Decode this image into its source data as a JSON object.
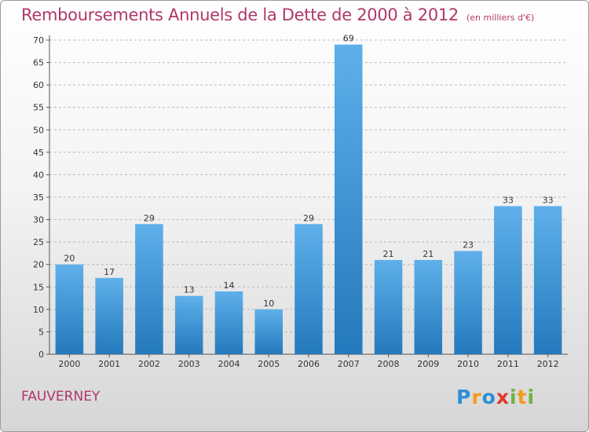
{
  "title": "Remboursements Annuels de la Dette de 2000 à 2012",
  "unit_note": "(en milliers d'€)",
  "commune": "FAUVERNEY",
  "logo": {
    "text": "Proxiti",
    "letters": [
      {
        "ch": "P",
        "color": "#2b8fd6"
      },
      {
        "ch": "r",
        "color": "#f39a1d"
      },
      {
        "ch": "o",
        "color": "#2b8fd6"
      },
      {
        "ch": "x",
        "color": "#e2362b"
      },
      {
        "ch": "i",
        "color": "#6cb33f"
      },
      {
        "ch": "t",
        "color": "#f39a1d"
      },
      {
        "ch": "i",
        "color": "#6cb33f"
      }
    ]
  },
  "chart_data": {
    "type": "bar",
    "categories": [
      "2000",
      "2001",
      "2002",
      "2003",
      "2004",
      "2005",
      "2006",
      "2007",
      "2008",
      "2009",
      "2010",
      "2011",
      "2012"
    ],
    "values": [
      20,
      17,
      29,
      13,
      14,
      10,
      29,
      69,
      21,
      21,
      23,
      33,
      33
    ],
    "ylim": [
      0,
      70
    ],
    "yticks": [
      0,
      5,
      10,
      15,
      20,
      25,
      30,
      35,
      40,
      45,
      50,
      55,
      60,
      65,
      70
    ],
    "grid": "horizontal dashed",
    "bar_color_top": "#5fb0ea",
    "bar_color_bottom": "#2479bc",
    "data_labels": true
  }
}
